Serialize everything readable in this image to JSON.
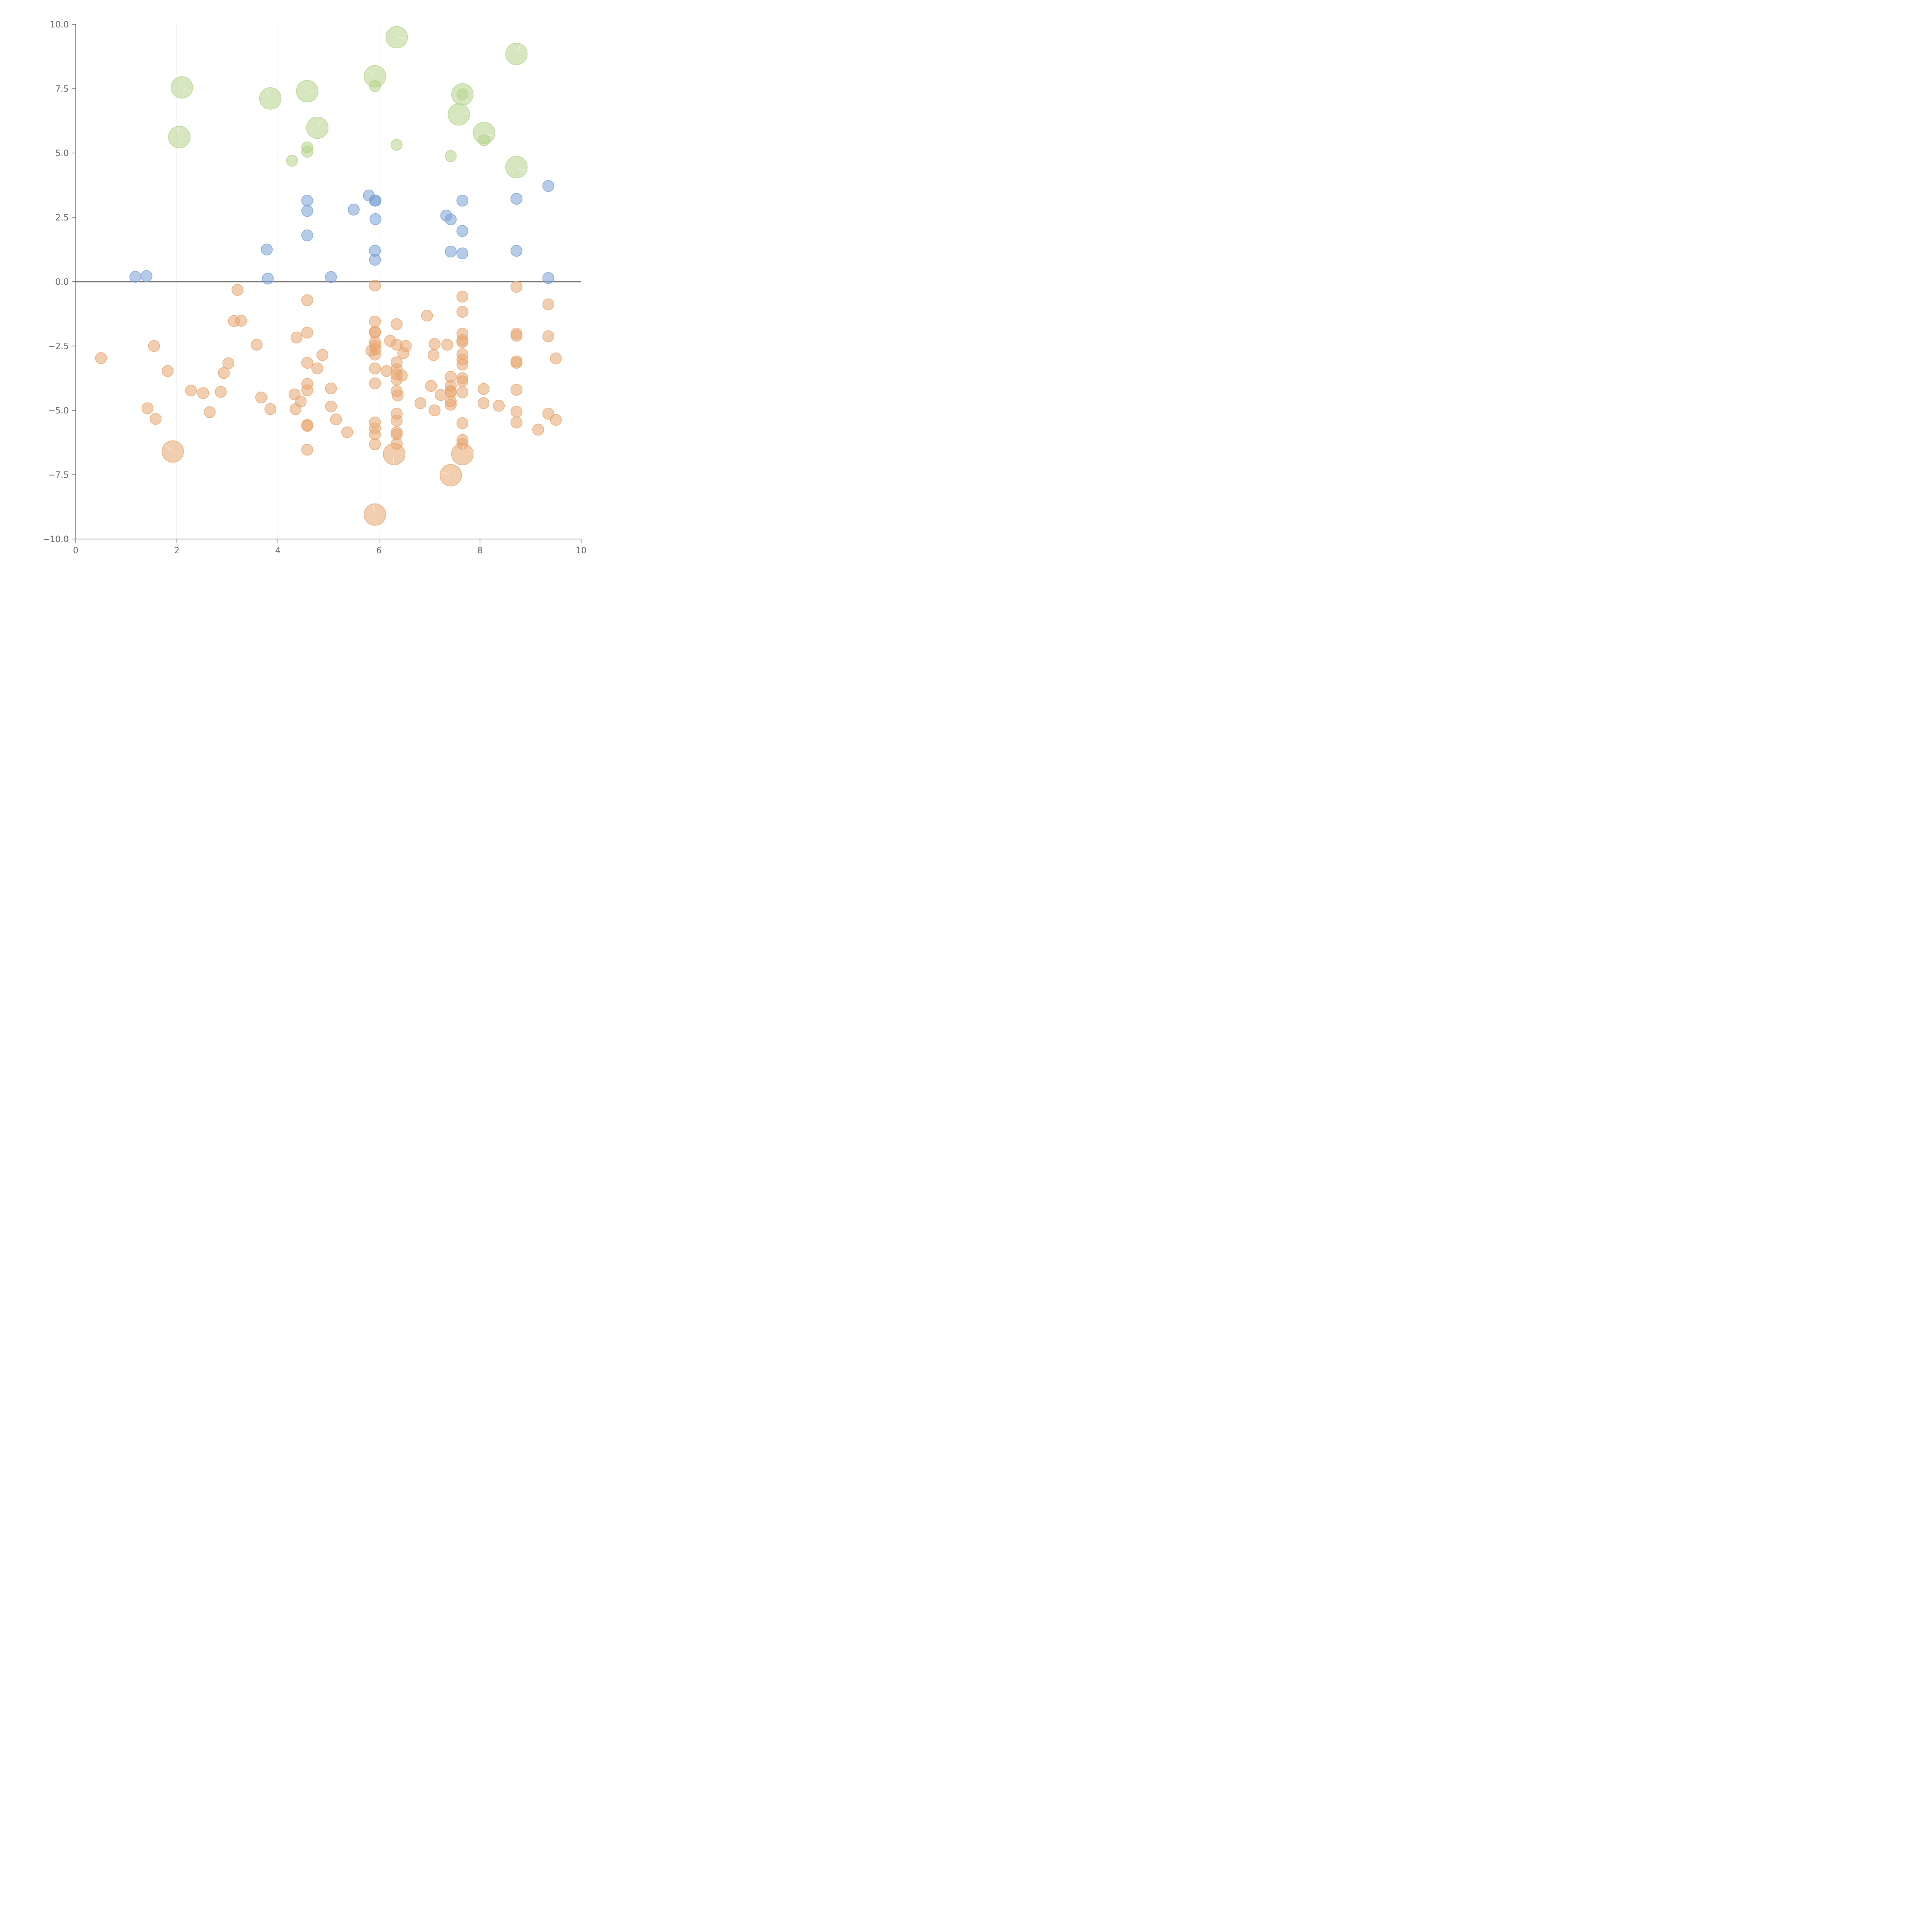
{
  "colors": {
    "positive": "#7aa0d4",
    "negative": "#e8a670",
    "highlight": "#b5d38a",
    "axis": "#666666",
    "grid": "#d9d9d9"
  },
  "chart_data": {
    "type": "scatter",
    "xlim": [
      0,
      10
    ],
    "ylim": [
      -10,
      10
    ],
    "x_ticks": [
      0,
      2,
      4,
      6,
      8,
      10
    ],
    "y_ticks": [
      10,
      7.5,
      5,
      2.5,
      0,
      -2.5,
      -5,
      -7.5,
      -10
    ],
    "x_tick_labels": [
      "0",
      "2",
      "4",
      "6",
      "8",
      "10"
    ],
    "y_tick_labels": [
      "10.0",
      "7.5",
      "5.0",
      "2.5",
      "0.0",
      "−2.5",
      "−5.0",
      "−7.5",
      "−10.0"
    ],
    "grid": "vertical",
    "zero_line": true,
    "series": [
      {
        "color_key": "highlight",
        "points": [
          [
            2.1,
            7.55,
            2
          ],
          [
            2.05,
            5.62,
            2
          ],
          [
            3.85,
            7.12,
            2
          ],
          [
            4.58,
            7.4,
            2
          ],
          [
            4.78,
            5.98,
            2
          ],
          [
            5.92,
            7.98,
            2
          ],
          [
            6.35,
            9.5,
            2
          ],
          [
            7.65,
            7.28,
            2
          ],
          [
            7.58,
            6.5,
            2
          ],
          [
            8.08,
            5.78,
            2
          ],
          [
            8.72,
            8.85,
            2
          ],
          [
            8.72,
            4.45,
            2
          ],
          [
            4.28,
            4.7,
            1
          ],
          [
            4.58,
            5.22,
            1
          ],
          [
            4.58,
            5.05,
            1
          ],
          [
            5.92,
            7.6,
            1
          ],
          [
            6.35,
            5.32,
            1
          ],
          [
            7.42,
            4.88,
            1
          ],
          [
            7.65,
            7.28,
            1
          ],
          [
            8.08,
            5.5,
            1
          ]
        ]
      },
      {
        "color_key": "positive",
        "points": [
          [
            1.18,
            0.19,
            1
          ],
          [
            1.4,
            0.22,
            1
          ],
          [
            3.78,
            1.25,
            1
          ],
          [
            3.8,
            0.12,
            1
          ],
          [
            4.58,
            3.15,
            1
          ],
          [
            4.58,
            2.75,
            1
          ],
          [
            4.58,
            1.8,
            1
          ],
          [
            5.05,
            0.18,
            1
          ],
          [
            5.5,
            2.8,
            1
          ],
          [
            5.8,
            3.35,
            1
          ],
          [
            5.92,
            3.15,
            1
          ],
          [
            5.93,
            3.15,
            1
          ],
          [
            5.93,
            2.43,
            1
          ],
          [
            5.92,
            1.2,
            1
          ],
          [
            5.92,
            0.85,
            1
          ],
          [
            7.33,
            2.57,
            1
          ],
          [
            7.42,
            2.42,
            1
          ],
          [
            7.42,
            1.17,
            1
          ],
          [
            7.65,
            3.15,
            1
          ],
          [
            7.65,
            1.97,
            1
          ],
          [
            7.65,
            1.1,
            1
          ],
          [
            8.72,
            3.22,
            1
          ],
          [
            8.72,
            1.2,
            1
          ],
          [
            9.35,
            3.72,
            1
          ],
          [
            9.35,
            0.14,
            1
          ]
        ]
      },
      {
        "color_key": "negative",
        "points": [
          [
            0.5,
            -2.97,
            1
          ],
          [
            1.42,
            -4.92,
            1
          ],
          [
            1.55,
            -2.5,
            1
          ],
          [
            1.58,
            -5.33,
            1
          ],
          [
            1.82,
            -3.47,
            1
          ],
          [
            2.28,
            -4.23,
            1
          ],
          [
            2.52,
            -4.33,
            1
          ],
          [
            2.65,
            -5.07,
            1
          ],
          [
            2.87,
            -4.28,
            1
          ],
          [
            2.93,
            -3.55,
            1
          ],
          [
            3.02,
            -3.17,
            1
          ],
          [
            3.13,
            -1.53,
            1
          ],
          [
            3.2,
            -0.32,
            1
          ],
          [
            3.27,
            -1.52,
            1
          ],
          [
            3.58,
            -2.45,
            1
          ],
          [
            3.67,
            -4.5,
            1
          ],
          [
            3.85,
            -4.95,
            1
          ],
          [
            4.33,
            -4.38,
            1
          ],
          [
            4.35,
            -4.95,
            1
          ],
          [
            4.37,
            -2.17,
            1
          ],
          [
            4.45,
            -4.65,
            1
          ],
          [
            4.58,
            -0.72,
            1
          ],
          [
            4.58,
            -1.98,
            1
          ],
          [
            4.58,
            -3.15,
            1
          ],
          [
            4.58,
            -3.97,
            1
          ],
          [
            4.58,
            -4.22,
            1
          ],
          [
            4.58,
            -5.57,
            1
          ],
          [
            4.58,
            -5.6,
            1
          ],
          [
            4.58,
            -6.53,
            1
          ],
          [
            4.78,
            -3.37,
            1
          ],
          [
            4.88,
            -2.85,
            1
          ],
          [
            5.05,
            -4.15,
            1
          ],
          [
            5.05,
            -4.85,
            1
          ],
          [
            5.15,
            -5.35,
            1
          ],
          [
            5.37,
            -5.85,
            1
          ],
          [
            5.92,
            -0.15,
            1
          ],
          [
            5.92,
            -1.55,
            1
          ],
          [
            5.92,
            -1.95,
            1
          ],
          [
            5.92,
            -1.98,
            1
          ],
          [
            5.92,
            -2.35,
            1
          ],
          [
            5.92,
            -2.5,
            1
          ],
          [
            5.85,
            -2.68,
            1
          ],
          [
            5.93,
            -2.62,
            1
          ],
          [
            5.92,
            -2.83,
            1
          ],
          [
            5.92,
            -3.37,
            1
          ],
          [
            5.92,
            -3.95,
            1
          ],
          [
            5.92,
            -5.47,
            1
          ],
          [
            5.92,
            -5.7,
            1
          ],
          [
            5.92,
            -5.93,
            1
          ],
          [
            5.92,
            -6.32,
            1
          ],
          [
            6.15,
            -3.47,
            1
          ],
          [
            6.22,
            -2.3,
            1
          ],
          [
            6.35,
            -1.65,
            1
          ],
          [
            6.35,
            -2.45,
            1
          ],
          [
            6.35,
            -3.13,
            1
          ],
          [
            6.35,
            -3.4,
            1
          ],
          [
            6.35,
            -3.6,
            1
          ],
          [
            6.35,
            -3.8,
            1
          ],
          [
            6.35,
            -4.25,
            1
          ],
          [
            6.37,
            -4.42,
            1
          ],
          [
            6.35,
            -5.13,
            1
          ],
          [
            6.35,
            -5.4,
            1
          ],
          [
            6.35,
            -5.85,
            1
          ],
          [
            6.35,
            -5.93,
            1
          ],
          [
            6.35,
            -6.3,
            1
          ],
          [
            6.45,
            -3.65,
            1
          ],
          [
            6.48,
            -2.78,
            1
          ],
          [
            6.53,
            -2.5,
            1
          ],
          [
            6.82,
            -4.72,
            1
          ],
          [
            6.95,
            -1.32,
            1
          ],
          [
            7.03,
            -4.05,
            1
          ],
          [
            7.08,
            -2.85,
            1
          ],
          [
            7.1,
            -2.42,
            1
          ],
          [
            7.1,
            -5.0,
            1
          ],
          [
            7.22,
            -4.4,
            1
          ],
          [
            7.35,
            -2.45,
            1
          ],
          [
            7.42,
            -3.7,
            1
          ],
          [
            7.42,
            -4.05,
            1
          ],
          [
            7.42,
            -4.25,
            1
          ],
          [
            7.42,
            -4.3,
            1
          ],
          [
            7.42,
            -4.65,
            1
          ],
          [
            7.42,
            -4.78,
            1
          ],
          [
            7.65,
            -0.58,
            1
          ],
          [
            7.65,
            -1.17,
            1
          ],
          [
            7.65,
            -2.02,
            1
          ],
          [
            7.65,
            -2.27,
            1
          ],
          [
            7.65,
            -2.35,
            1
          ],
          [
            7.65,
            -2.82,
            1
          ],
          [
            7.65,
            -3.03,
            1
          ],
          [
            7.65,
            -3.22,
            1
          ],
          [
            7.65,
            -3.75,
            1
          ],
          [
            7.65,
            -3.87,
            1
          ],
          [
            7.65,
            -4.3,
            1
          ],
          [
            7.65,
            -5.5,
            1
          ],
          [
            7.65,
            -6.15,
            1
          ],
          [
            7.65,
            -6.3,
            1
          ],
          [
            8.07,
            -4.17,
            1
          ],
          [
            8.07,
            -4.72,
            1
          ],
          [
            8.37,
            -4.82,
            1
          ],
          [
            8.72,
            -0.2,
            1
          ],
          [
            8.72,
            -2.02,
            1
          ],
          [
            8.72,
            -2.1,
            1
          ],
          [
            8.72,
            -3.1,
            1
          ],
          [
            8.72,
            -3.15,
            1
          ],
          [
            8.72,
            -4.2,
            1
          ],
          [
            8.72,
            -5.05,
            1
          ],
          [
            8.72,
            -5.47,
            1
          ],
          [
            9.15,
            -5.75,
            1
          ],
          [
            9.35,
            -0.88,
            1
          ],
          [
            9.35,
            -2.12,
            1
          ],
          [
            9.35,
            -5.13,
            1
          ],
          [
            9.5,
            -2.98,
            1
          ],
          [
            9.5,
            -5.37,
            1
          ],
          [
            1.92,
            -6.6,
            2
          ],
          [
            6.3,
            -6.7,
            2
          ],
          [
            7.65,
            -6.7,
            2
          ],
          [
            7.42,
            -7.52,
            2
          ],
          [
            5.92,
            -9.05,
            2
          ]
        ]
      }
    ]
  }
}
